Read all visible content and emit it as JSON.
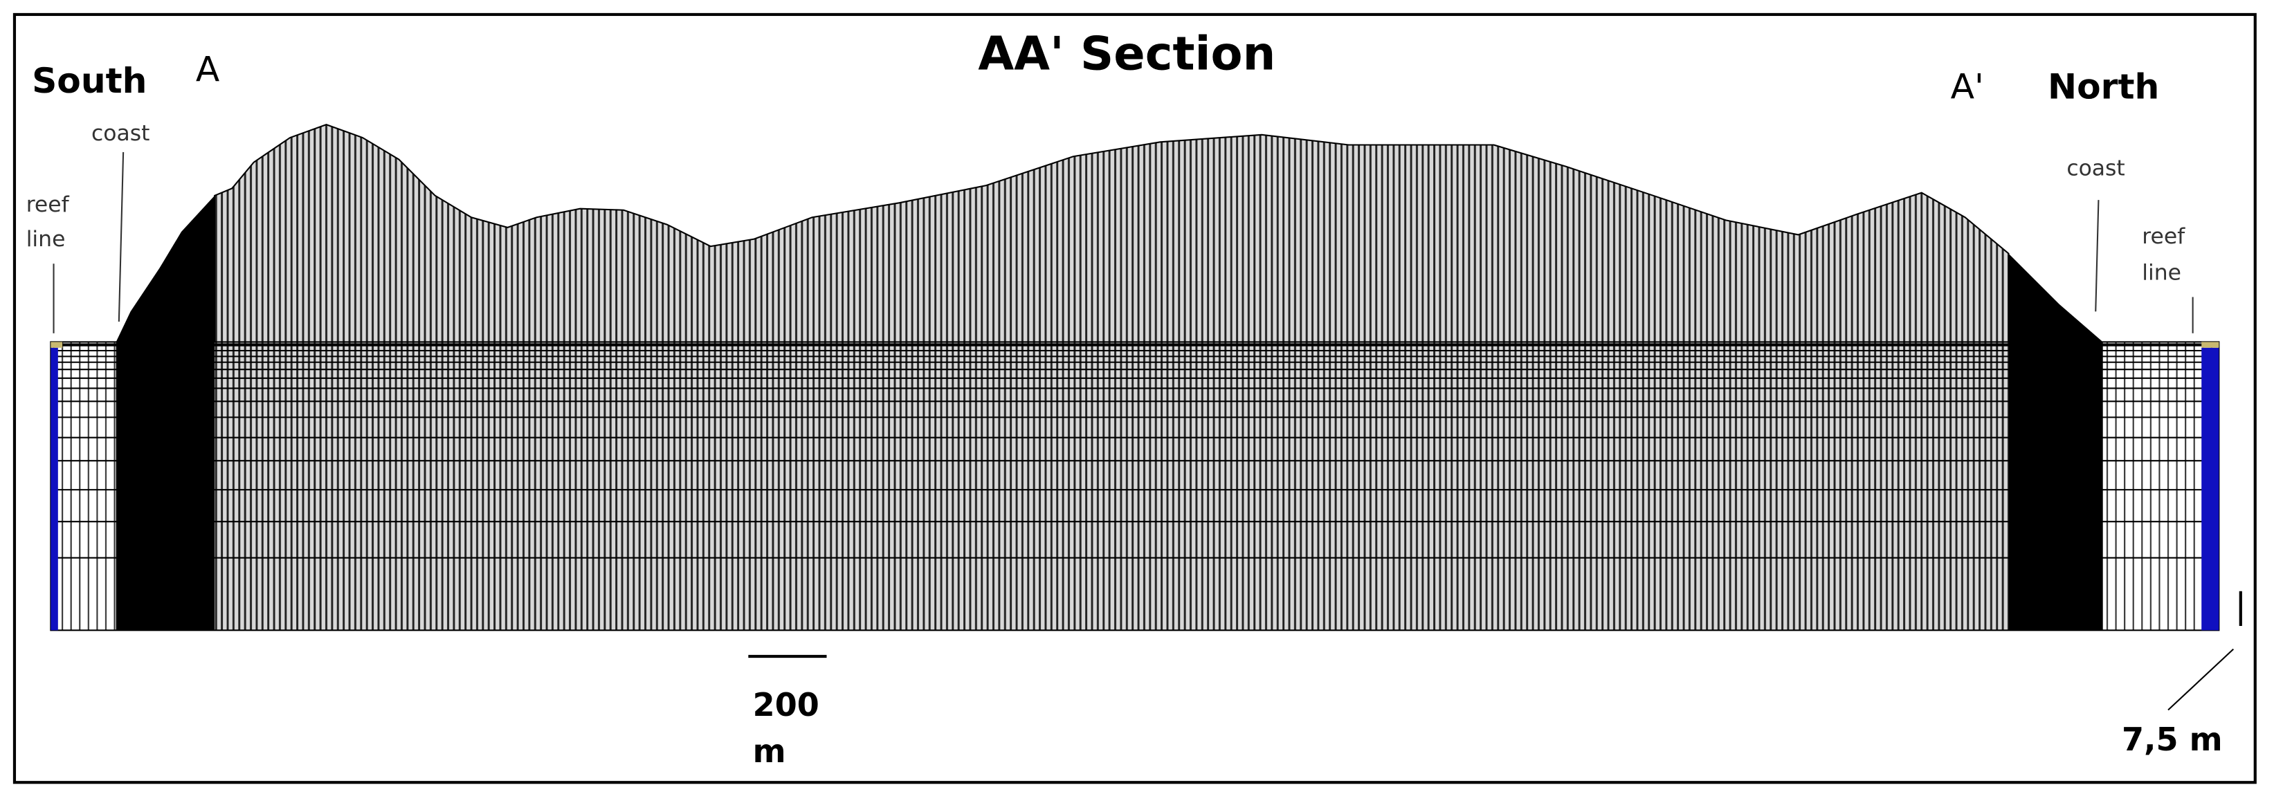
{
  "title": "AA' Section",
  "labels": {
    "south": "South",
    "a": "A",
    "a_prime": "A'",
    "north": "North",
    "coast_left": "coast",
    "coast_right": "coast",
    "reef_left": [
      "reef",
      "line"
    ],
    "reef_right": [
      "reef",
      "line"
    ]
  },
  "scale": {
    "horizontal": [
      "200",
      "m"
    ],
    "vertical": "7,5 m"
  }
}
